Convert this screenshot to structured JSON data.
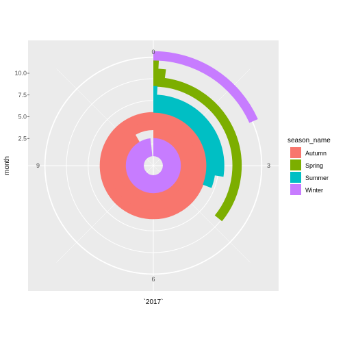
{
  "chart_data": {
    "type": "polar-bar",
    "xlabel": "`2017`",
    "ylabel": "month",
    "angle_ticks": [
      "0",
      "3",
      "6",
      "9"
    ],
    "angle_range": [
      0,
      12
    ],
    "radius_ticks": [
      "2.5",
      "5.0",
      "7.5",
      "10.0"
    ],
    "radius_range": [
      0,
      12
    ],
    "grid": true,
    "legend": {
      "title": "season_name",
      "position": "right"
    },
    "series": [
      {
        "name": "Autumn",
        "color": "#F8766D",
        "bars": [
          {
            "month": 3,
            "value": 11.0
          },
          {
            "month": 4,
            "value": 12.0
          },
          {
            "month": 5,
            "value": 12.0
          }
        ]
      },
      {
        "name": "Spring",
        "color": "#7CAE00",
        "bars": [
          {
            "month": 9,
            "value": 4.3
          },
          {
            "month": 10,
            "value": 0.25
          },
          {
            "month": 11,
            "value": 0.1
          }
        ]
      },
      {
        "name": "Summer",
        "color": "#00BFC4",
        "bars": [
          {
            "month": 6,
            "value": 3.7
          },
          {
            "month": 7,
            "value": 3.3
          },
          {
            "month": 8,
            "value": 0.1
          }
        ]
      },
      {
        "name": "Winter",
        "color": "#C77CFF",
        "bars": [
          {
            "month": 1,
            "value": 11.8
          },
          {
            "month": 2,
            "value": 11.8
          },
          {
            "month": 12,
            "value": 2.2
          }
        ]
      }
    ]
  }
}
